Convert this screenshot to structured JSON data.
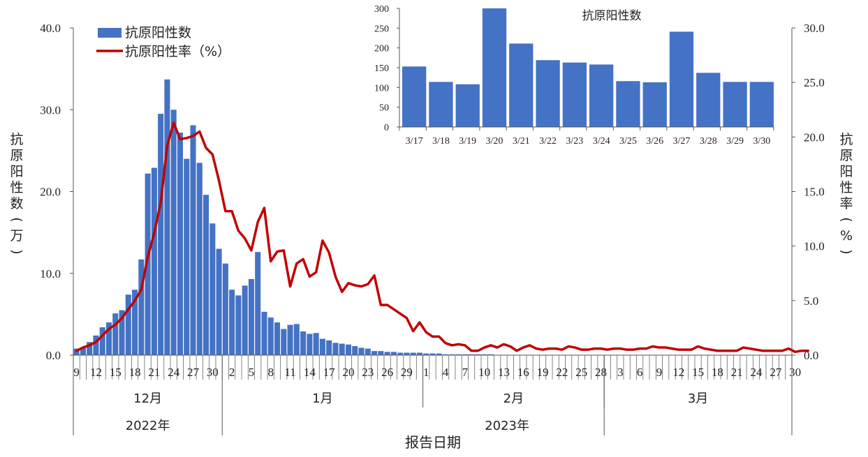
{
  "chart_data": [
    {
      "type": "bar+line",
      "title": "",
      "legend_placement": "top-left",
      "legend": [
        {
          "label": "抗原阳性数",
          "color": "#4472C4",
          "kind": "bar"
        },
        {
          "label": "抗原阳性率（%）",
          "color": "#C00000",
          "kind": "line"
        }
      ],
      "left_axis": {
        "label": "抗原阳性数（万）",
        "range": [
          0,
          40
        ],
        "ticks": [
          "0.0",
          "10.0",
          "20.0",
          "30.0",
          "40.0"
        ]
      },
      "right_axis": {
        "label": "抗原阳性率（%）",
        "range": [
          0,
          30
        ],
        "ticks": [
          "0.0",
          "5.0",
          "10.0",
          "15.0",
          "20.0",
          "25.0",
          "30.0"
        ]
      },
      "x_axis": {
        "title": "报告日期",
        "day_ticks": [
          "9",
          "12",
          "15",
          "18",
          "21",
          "24",
          "27",
          "30",
          "2",
          "5",
          "8",
          "11",
          "14",
          "17",
          "20",
          "23",
          "26",
          "29",
          "1",
          "4",
          "7",
          "10",
          "13",
          "16",
          "19",
          "22",
          "25",
          "28",
          "3",
          "6",
          "9",
          "12",
          "15",
          "18",
          "21",
          "24",
          "27",
          "30"
        ],
        "months": [
          "12月",
          "1月",
          "2月",
          "3月"
        ],
        "years": [
          "2022年",
          "2023年"
        ]
      },
      "grid": false,
      "series_bar": {
        "name": "抗原阳性数",
        "unit": "万",
        "values": [
          0.8,
          0.9,
          1.6,
          2.4,
          3.4,
          4.0,
          5.1,
          5.5,
          7.4,
          8.0,
          11.7,
          22.2,
          22.9,
          29.5,
          33.7,
          30.0,
          27.2,
          24.0,
          28.1,
          23.5,
          19.6,
          16.1,
          13.0,
          11.2,
          8.0,
          7.3,
          8.5,
          9.3,
          12.6,
          5.3,
          4.6,
          4.0,
          3.2,
          3.7,
          3.8,
          2.9,
          2.6,
          2.7,
          2.0,
          1.8,
          1.5,
          1.4,
          1.3,
          1.1,
          0.9,
          0.8,
          0.5,
          0.5,
          0.4,
          0.4,
          0.3,
          0.3,
          0.3,
          0.3,
          0.2,
          0.2,
          0.2,
          0.1,
          0.1,
          0.1,
          0.1,
          0.1,
          0.1,
          0.1,
          0.1,
          0.04,
          0.03,
          0.03,
          0.03,
          0.03,
          0.03,
          0.03,
          0.03,
          0.03,
          0.03,
          0.03,
          0.03,
          0.03,
          0.03,
          0.03,
          0.03,
          0.03,
          0.03,
          0.03,
          0.03,
          0.03,
          0.03,
          0.03,
          0.03,
          0.03,
          0.03,
          0.03,
          0.03,
          0.03,
          0.03,
          0.03,
          0.03,
          0.03,
          0.03,
          0.03,
          0.03,
          0.03,
          0.03,
          0.03,
          0.03,
          0.03,
          0.03,
          0.03,
          0.03,
          0.03,
          0.03
        ]
      },
      "series_line": {
        "name": "抗原阳性率（%）",
        "values": [
          0.4,
          0.7,
          0.9,
          1.2,
          1.8,
          2.4,
          2.8,
          3.4,
          4.2,
          5.0,
          6.0,
          9.0,
          11.2,
          14.0,
          19.2,
          21.3,
          19.8,
          19.9,
          20.1,
          20.5,
          19.0,
          18.4,
          16.0,
          13.2,
          13.2,
          11.4,
          10.7,
          9.6,
          12.2,
          13.5,
          8.6,
          9.5,
          9.6,
          6.3,
          8.4,
          8.8,
          7.2,
          7.6,
          10.5,
          9.4,
          7.2,
          5.8,
          6.6,
          6.4,
          6.3,
          6.5,
          7.3,
          4.6,
          4.6,
          4.2,
          3.8,
          3.4,
          2.2,
          3.0,
          2.1,
          1.7,
          1.7,
          1.1,
          0.9,
          1.0,
          0.9,
          0.4,
          0.4,
          0.7,
          0.9,
          0.7,
          1.0,
          0.8,
          0.4,
          0.7,
          0.9,
          0.6,
          0.5,
          0.6,
          0.6,
          0.5,
          0.8,
          0.7,
          0.5,
          0.5,
          0.6,
          0.6,
          0.5,
          0.6,
          0.6,
          0.5,
          0.5,
          0.6,
          0.6,
          0.8,
          0.7,
          0.7,
          0.6,
          0.5,
          0.5,
          0.5,
          0.8,
          0.6,
          0.5,
          0.4,
          0.4,
          0.4,
          0.4,
          0.7,
          0.6,
          0.5,
          0.4,
          0.4,
          0.4,
          0.4,
          0.6,
          0.3,
          0.4,
          0.4
        ]
      }
    },
    {
      "type": "bar",
      "title": "抗原阳性数",
      "categories": [
        "3/17",
        "3/18",
        "3/19",
        "3/20",
        "3/21",
        "3/22",
        "3/23",
        "3/24",
        "3/25",
        "3/26",
        "3/27",
        "3/28",
        "3/29",
        "3/30"
      ],
      "values": [
        153,
        114,
        108,
        300,
        211,
        169,
        163,
        158,
        116,
        113,
        241,
        137,
        114,
        114
      ],
      "ylim": [
        0,
        300
      ],
      "yticks": [
        "0",
        "50",
        "100",
        "150",
        "200",
        "250",
        "300"
      ],
      "color": "#4472C4",
      "grid": false
    }
  ]
}
